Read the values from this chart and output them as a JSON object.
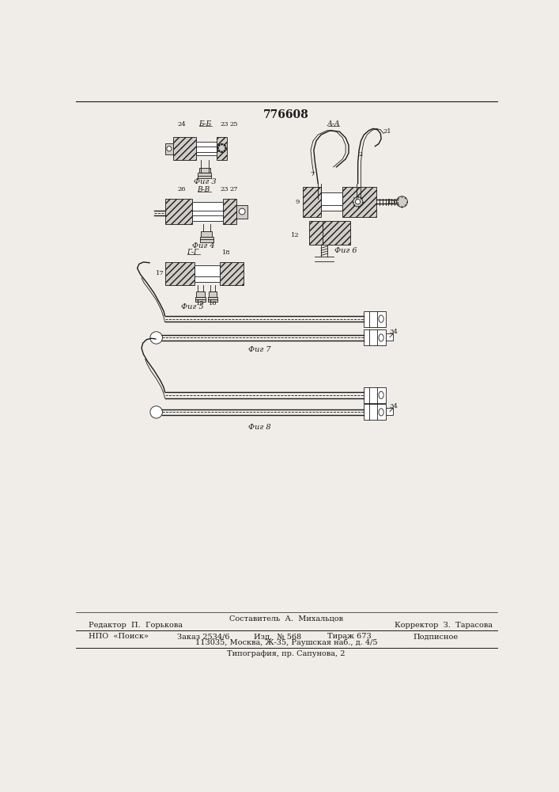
{
  "title": "776608",
  "bg_color": "#f0ede8",
  "fig_width": 7.07,
  "fig_height": 10.0,
  "footer": {
    "sestavitel": "Составитель  А.  Михальцов",
    "redaktor": "Редактор  П.  Горькова",
    "korrektor": "Корректор  З.  Тарасова",
    "npo": "НПО  «Поиск»",
    "zakaz": "Заказ 2534/6",
    "izd": "Изд.  № 568",
    "tirazh": "Тираж 673",
    "podpisnoe": "Подписное",
    "address": "113035, Москва, Ж-35, Раушская наб., д. 4/5",
    "tipografia": "Типография, пр. Сапунова, 2"
  }
}
